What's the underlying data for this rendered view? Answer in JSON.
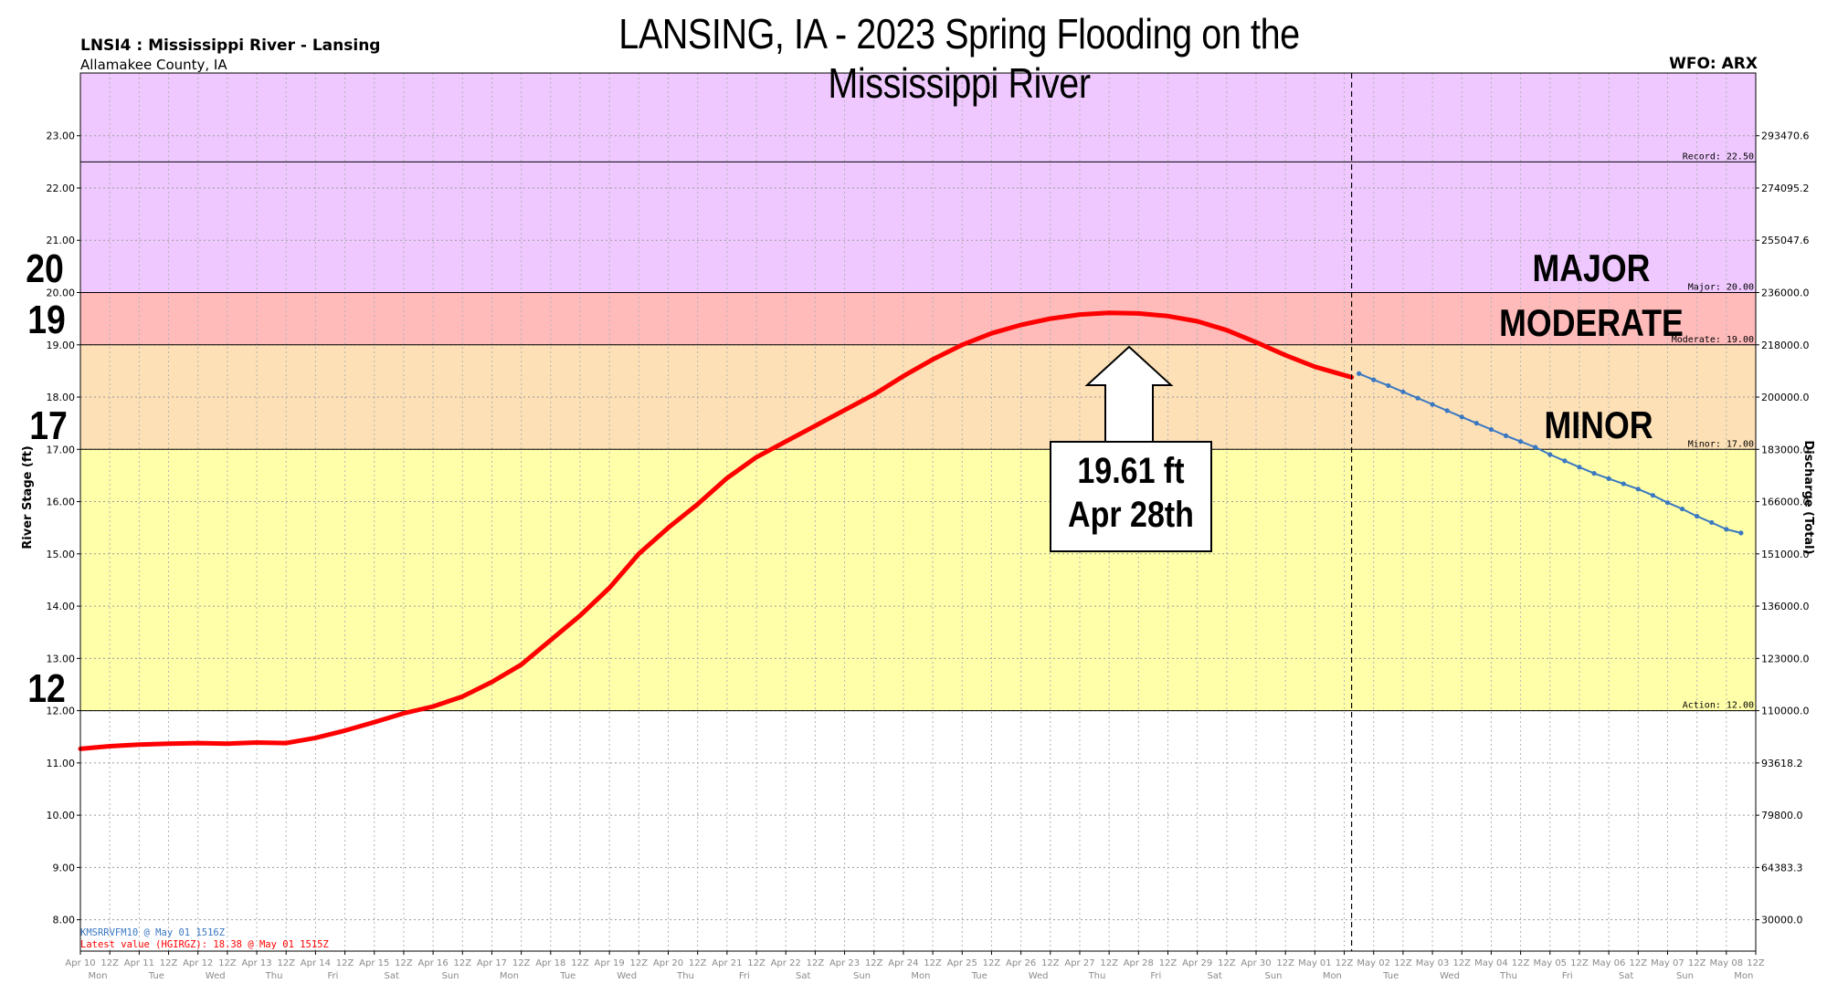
{
  "banner_title": "LANSING, IA - 2023 Spring Flooding on the Mississippi River",
  "station": "LNSI4 : Mississippi River - Lansing",
  "county": "Allamakee County, IA",
  "wfo": "WFO: ARX",
  "left_axis_label": "River Stage (ft)",
  "right_axis_label": "Discharge (Total)",
  "big_stage_labels": [
    "20",
    "19",
    "17",
    "12"
  ],
  "category_labels": {
    "major": "MAJOR",
    "moderate": "MODERATE",
    "minor": "MINOR"
  },
  "crest_callout": {
    "line1": "19.61 ft",
    "line2": "Apr 28th"
  },
  "source_note": "KMSRRVFM10 @ May 01 1516Z",
  "latest_value_note": "Latest value (HGIRGZ): 18.38 @ May 01 1515Z",
  "chart_data": {
    "type": "line",
    "ylabel": "River Stage (ft)",
    "y2label": "Discharge (Total)",
    "ylim": [
      7.4,
      24.2
    ],
    "xlim": [
      "2023-04-10T00:00Z",
      "2023-05-08T12:00Z"
    ],
    "grid": true,
    "y_ticks": [
      "8.00",
      "9.00",
      "10.00",
      "11.00",
      "12.00",
      "13.00",
      "14.00",
      "15.00",
      "16.00",
      "17.00",
      "18.00",
      "19.00",
      "20.00",
      "21.00",
      "22.00",
      "23.00"
    ],
    "y2_ticks": [
      {
        "stage": 8,
        "label": "30000.0"
      },
      {
        "stage": 9,
        "label": "64383.3"
      },
      {
        "stage": 10,
        "label": "79800.0"
      },
      {
        "stage": 11,
        "label": "93618.2"
      },
      {
        "stage": 12,
        "label": "110000.0"
      },
      {
        "stage": 13,
        "label": "123000.0"
      },
      {
        "stage": 14,
        "label": "136000.0"
      },
      {
        "stage": 15,
        "label": "151000.0"
      },
      {
        "stage": 16,
        "label": "166000.0"
      },
      {
        "stage": 17,
        "label": "183000.0"
      },
      {
        "stage": 18,
        "label": "200000.0"
      },
      {
        "stage": 19,
        "label": "218000.0"
      },
      {
        "stage": 20,
        "label": "236000.0"
      },
      {
        "stage": 21,
        "label": "255047.6"
      },
      {
        "stage": 22,
        "label": "274095.2"
      },
      {
        "stage": 23,
        "label": "293470.6"
      }
    ],
    "x_ticks": [
      {
        "top": "Apr 10",
        "bottom": "Mon"
      },
      {
        "top": "12Z",
        "bottom": ""
      },
      {
        "top": "Apr 11",
        "bottom": "Tue"
      },
      {
        "top": "12Z",
        "bottom": ""
      },
      {
        "top": "Apr 12",
        "bottom": "Wed"
      },
      {
        "top": "12Z",
        "bottom": ""
      },
      {
        "top": "Apr 13",
        "bottom": "Thu"
      },
      {
        "top": "12Z",
        "bottom": ""
      },
      {
        "top": "Apr 14",
        "bottom": "Fri"
      },
      {
        "top": "12Z",
        "bottom": ""
      },
      {
        "top": "Apr 15",
        "bottom": "Sat"
      },
      {
        "top": "12Z",
        "bottom": ""
      },
      {
        "top": "Apr 16",
        "bottom": "Sun"
      },
      {
        "top": "12Z",
        "bottom": ""
      },
      {
        "top": "Apr 17",
        "bottom": "Mon"
      },
      {
        "top": "12Z",
        "bottom": ""
      },
      {
        "top": "Apr 18",
        "bottom": "Tue"
      },
      {
        "top": "12Z",
        "bottom": ""
      },
      {
        "top": "Apr 19",
        "bottom": "Wed"
      },
      {
        "top": "12Z",
        "bottom": ""
      },
      {
        "top": "Apr 20",
        "bottom": "Thu"
      },
      {
        "top": "12Z",
        "bottom": ""
      },
      {
        "top": "Apr 21",
        "bottom": "Fri"
      },
      {
        "top": "12Z",
        "bottom": ""
      },
      {
        "top": "Apr 22",
        "bottom": "Sat"
      },
      {
        "top": "12Z",
        "bottom": ""
      },
      {
        "top": "Apr 23",
        "bottom": "Sun"
      },
      {
        "top": "12Z",
        "bottom": ""
      },
      {
        "top": "Apr 24",
        "bottom": "Mon"
      },
      {
        "top": "12Z",
        "bottom": ""
      },
      {
        "top": "Apr 25",
        "bottom": "Tue"
      },
      {
        "top": "12Z",
        "bottom": ""
      },
      {
        "top": "Apr 26",
        "bottom": "Wed"
      },
      {
        "top": "12Z",
        "bottom": ""
      },
      {
        "top": "Apr 27",
        "bottom": "Thu"
      },
      {
        "top": "12Z",
        "bottom": ""
      },
      {
        "top": "Apr 28",
        "bottom": "Fri"
      },
      {
        "top": "12Z",
        "bottom": ""
      },
      {
        "top": "Apr 29",
        "bottom": "Sat"
      },
      {
        "top": "12Z",
        "bottom": ""
      },
      {
        "top": "Apr 30",
        "bottom": "Sun"
      },
      {
        "top": "12Z",
        "bottom": ""
      },
      {
        "top": "May 01",
        "bottom": "Mon"
      },
      {
        "top": "12Z",
        "bottom": ""
      },
      {
        "top": "May 02",
        "bottom": "Tue"
      },
      {
        "top": "12Z",
        "bottom": ""
      },
      {
        "top": "May 03",
        "bottom": "Wed"
      },
      {
        "top": "12Z",
        "bottom": ""
      },
      {
        "top": "May 04",
        "bottom": "Thu"
      },
      {
        "top": "12Z",
        "bottom": ""
      },
      {
        "top": "May 05",
        "bottom": "Fri"
      },
      {
        "top": "12Z",
        "bottom": ""
      },
      {
        "top": "May 06",
        "bottom": "Sat"
      },
      {
        "top": "12Z",
        "bottom": ""
      },
      {
        "top": "May 07",
        "bottom": "Sun"
      },
      {
        "top": "12Z",
        "bottom": ""
      },
      {
        "top": "May 08",
        "bottom": "Mon"
      },
      {
        "top": "12Z",
        "bottom": ""
      }
    ],
    "flood_categories": [
      {
        "name": "Action",
        "label": "Action: 12.00",
        "from": 12,
        "to": 17,
        "color": "#ffffaa"
      },
      {
        "name": "Minor",
        "label": "Minor: 17.00",
        "from": 17,
        "to": 19,
        "color": "#fde0b6"
      },
      {
        "name": "Moderate",
        "label": "Moderate: 19.00",
        "from": 19,
        "to": 20,
        "color": "#ffbaba"
      },
      {
        "name": "Major",
        "label": "Major: 20.00",
        "from": 20,
        "to": 24.2,
        "color": "#efc8ff"
      },
      {
        "name": "Record",
        "label": "Record: 22.50",
        "from": 22.5,
        "to": 22.5,
        "color": ""
      }
    ],
    "now_marker": "2023-05-01T15:00Z",
    "series": [
      {
        "name": "Observed",
        "color": "#ff0000",
        "points": [
          [
            "2023-04-10T00:00Z",
            11.27
          ],
          [
            "2023-04-10T12:00Z",
            11.32
          ],
          [
            "2023-04-11T00:00Z",
            11.35
          ],
          [
            "2023-04-11T12:00Z",
            11.37
          ],
          [
            "2023-04-12T00:00Z",
            11.38
          ],
          [
            "2023-04-12T12:00Z",
            11.37
          ],
          [
            "2023-04-13T00:00Z",
            11.39
          ],
          [
            "2023-04-13T12:00Z",
            11.38
          ],
          [
            "2023-04-14T00:00Z",
            11.48
          ],
          [
            "2023-04-14T12:00Z",
            11.62
          ],
          [
            "2023-04-15T00:00Z",
            11.78
          ],
          [
            "2023-04-15T12:00Z",
            11.95
          ],
          [
            "2023-04-16T00:00Z",
            12.08
          ],
          [
            "2023-04-16T12:00Z",
            12.27
          ],
          [
            "2023-04-17T00:00Z",
            12.55
          ],
          [
            "2023-04-17T12:00Z",
            12.88
          ],
          [
            "2023-04-18T00:00Z",
            13.35
          ],
          [
            "2023-04-18T12:00Z",
            13.82
          ],
          [
            "2023-04-19T00:00Z",
            14.35
          ],
          [
            "2023-04-19T12:00Z",
            15.0
          ],
          [
            "2023-04-20T00:00Z",
            15.5
          ],
          [
            "2023-04-20T12:00Z",
            15.95
          ],
          [
            "2023-04-21T00:00Z",
            16.45
          ],
          [
            "2023-04-21T12:00Z",
            16.85
          ],
          [
            "2023-04-22T00:00Z",
            17.15
          ],
          [
            "2023-04-22T12:00Z",
            17.45
          ],
          [
            "2023-04-23T00:00Z",
            17.75
          ],
          [
            "2023-04-23T12:00Z",
            18.05
          ],
          [
            "2023-04-24T00:00Z",
            18.4
          ],
          [
            "2023-04-24T12:00Z",
            18.72
          ],
          [
            "2023-04-25T00:00Z",
            19.0
          ],
          [
            "2023-04-25T12:00Z",
            19.22
          ],
          [
            "2023-04-26T00:00Z",
            19.38
          ],
          [
            "2023-04-26T12:00Z",
            19.5
          ],
          [
            "2023-04-27T00:00Z",
            19.58
          ],
          [
            "2023-04-27T12:00Z",
            19.61
          ],
          [
            "2023-04-28T00:00Z",
            19.6
          ],
          [
            "2023-04-28T12:00Z",
            19.55
          ],
          [
            "2023-04-29T00:00Z",
            19.45
          ],
          [
            "2023-04-29T12:00Z",
            19.28
          ],
          [
            "2023-04-30T00:00Z",
            19.05
          ],
          [
            "2023-04-30T12:00Z",
            18.8
          ],
          [
            "2023-05-01T00:00Z",
            18.58
          ],
          [
            "2023-05-01T15:00Z",
            18.38
          ]
        ]
      },
      {
        "name": "Forecast",
        "color": "#3a78c2",
        "points": [
          [
            "2023-05-01T18:00Z",
            18.45
          ],
          [
            "2023-05-02T00:00Z",
            18.33
          ],
          [
            "2023-05-02T06:00Z",
            18.22
          ],
          [
            "2023-05-02T12:00Z",
            18.1
          ],
          [
            "2023-05-02T18:00Z",
            17.98
          ],
          [
            "2023-05-03T00:00Z",
            17.86
          ],
          [
            "2023-05-03T06:00Z",
            17.74
          ],
          [
            "2023-05-03T12:00Z",
            17.62
          ],
          [
            "2023-05-03T18:00Z",
            17.5
          ],
          [
            "2023-05-04T00:00Z",
            17.38
          ],
          [
            "2023-05-04T06:00Z",
            17.26
          ],
          [
            "2023-05-04T12:00Z",
            17.15
          ],
          [
            "2023-05-04T18:00Z",
            17.04
          ],
          [
            "2023-05-05T00:00Z",
            16.9
          ],
          [
            "2023-05-05T06:00Z",
            16.78
          ],
          [
            "2023-05-05T12:00Z",
            16.66
          ],
          [
            "2023-05-05T18:00Z",
            16.54
          ],
          [
            "2023-05-06T00:00Z",
            16.44
          ],
          [
            "2023-05-06T06:00Z",
            16.34
          ],
          [
            "2023-05-06T12:00Z",
            16.24
          ],
          [
            "2023-05-06T18:00Z",
            16.12
          ],
          [
            "2023-05-07T00:00Z",
            15.98
          ],
          [
            "2023-05-07T06:00Z",
            15.86
          ],
          [
            "2023-05-07T12:00Z",
            15.72
          ],
          [
            "2023-05-07T18:00Z",
            15.6
          ],
          [
            "2023-05-08T00:00Z",
            15.47
          ],
          [
            "2023-05-08T06:00Z",
            15.4
          ]
        ]
      }
    ]
  }
}
